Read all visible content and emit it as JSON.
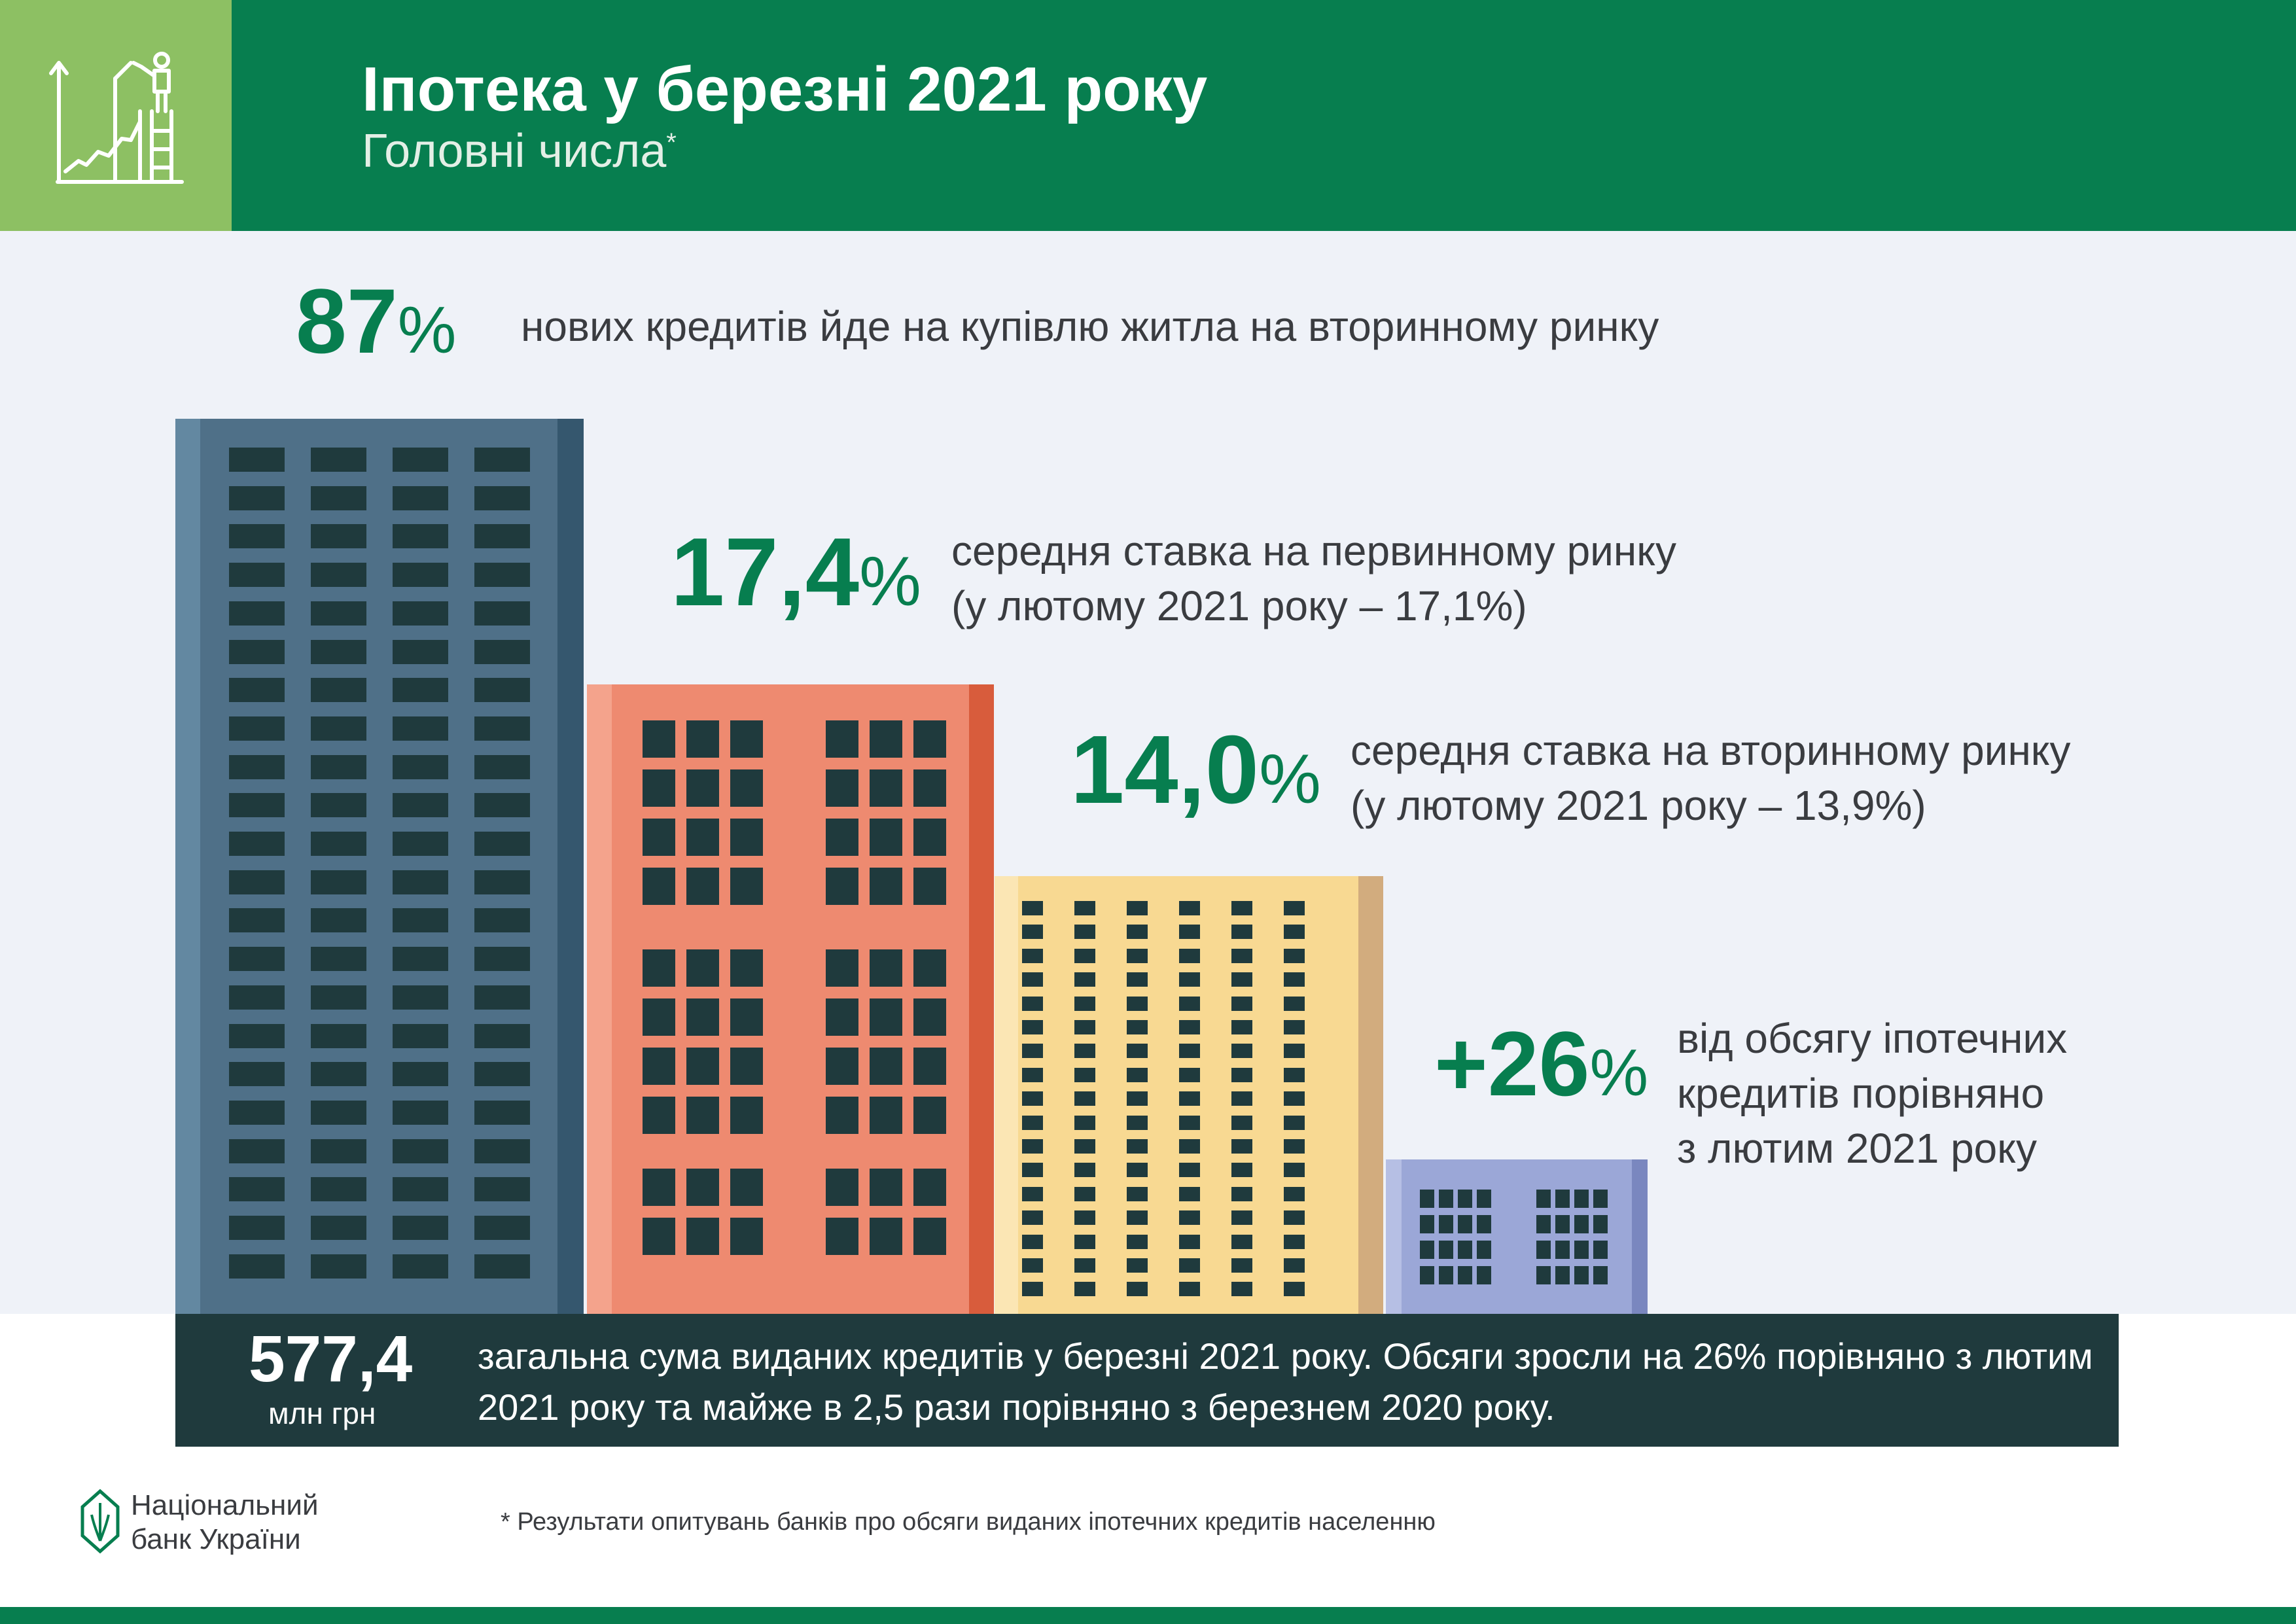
{
  "header": {
    "title": "Іпотека у березні 2021 року",
    "subtitle": "Головні числа",
    "subtitle_mark": "*"
  },
  "stats": [
    {
      "value": "87",
      "unit": "%",
      "desc_lines": [
        "нових кредитів йде на купівлю житла на вторинному ринку"
      ]
    },
    {
      "value": "17,4",
      "unit": "%",
      "desc_lines": [
        "середня ставка на первинному ринку",
        "(у лютому 2021 року – 17,1%)"
      ]
    },
    {
      "value": "14,0",
      "unit": "%",
      "desc_lines": [
        "середня ставка на вторинному ринку",
        "(у лютому 2021 року – 13,9%)"
      ]
    },
    {
      "value": "+26",
      "unit": "%",
      "desc_lines": [
        "від обсягу іпотечних",
        "кредитів порівняно",
        "з лютим 2021 року"
      ]
    }
  ],
  "summary": {
    "total": "577,4",
    "unit": "млн грн",
    "text": "загальна сума виданих кредитів у березні 2021 року. Обсяги зросли на 26% порівняно з лютим 2021 року та майже в 2,5 рази порівняно з березнем 2020 року."
  },
  "footer": {
    "bank_line1": "Національний",
    "bank_line2": "банк України",
    "footnote": "* Результати опитувань банків про обсяги виданих іпотечних кредитів населенню"
  },
  "colors": {
    "green": "#077e4f",
    "light_green": "#8dc063",
    "panel": "#eff2f8",
    "dark": "#1f3a3d",
    "building_blue": "#4f7088",
    "building_coral": "#ee8a70",
    "building_sand": "#f8d992",
    "building_lavender": "#9ba7d7"
  },
  "icons": {
    "header": "growth-chart-ladder-icon",
    "bank": "nbu-logo-icon"
  }
}
